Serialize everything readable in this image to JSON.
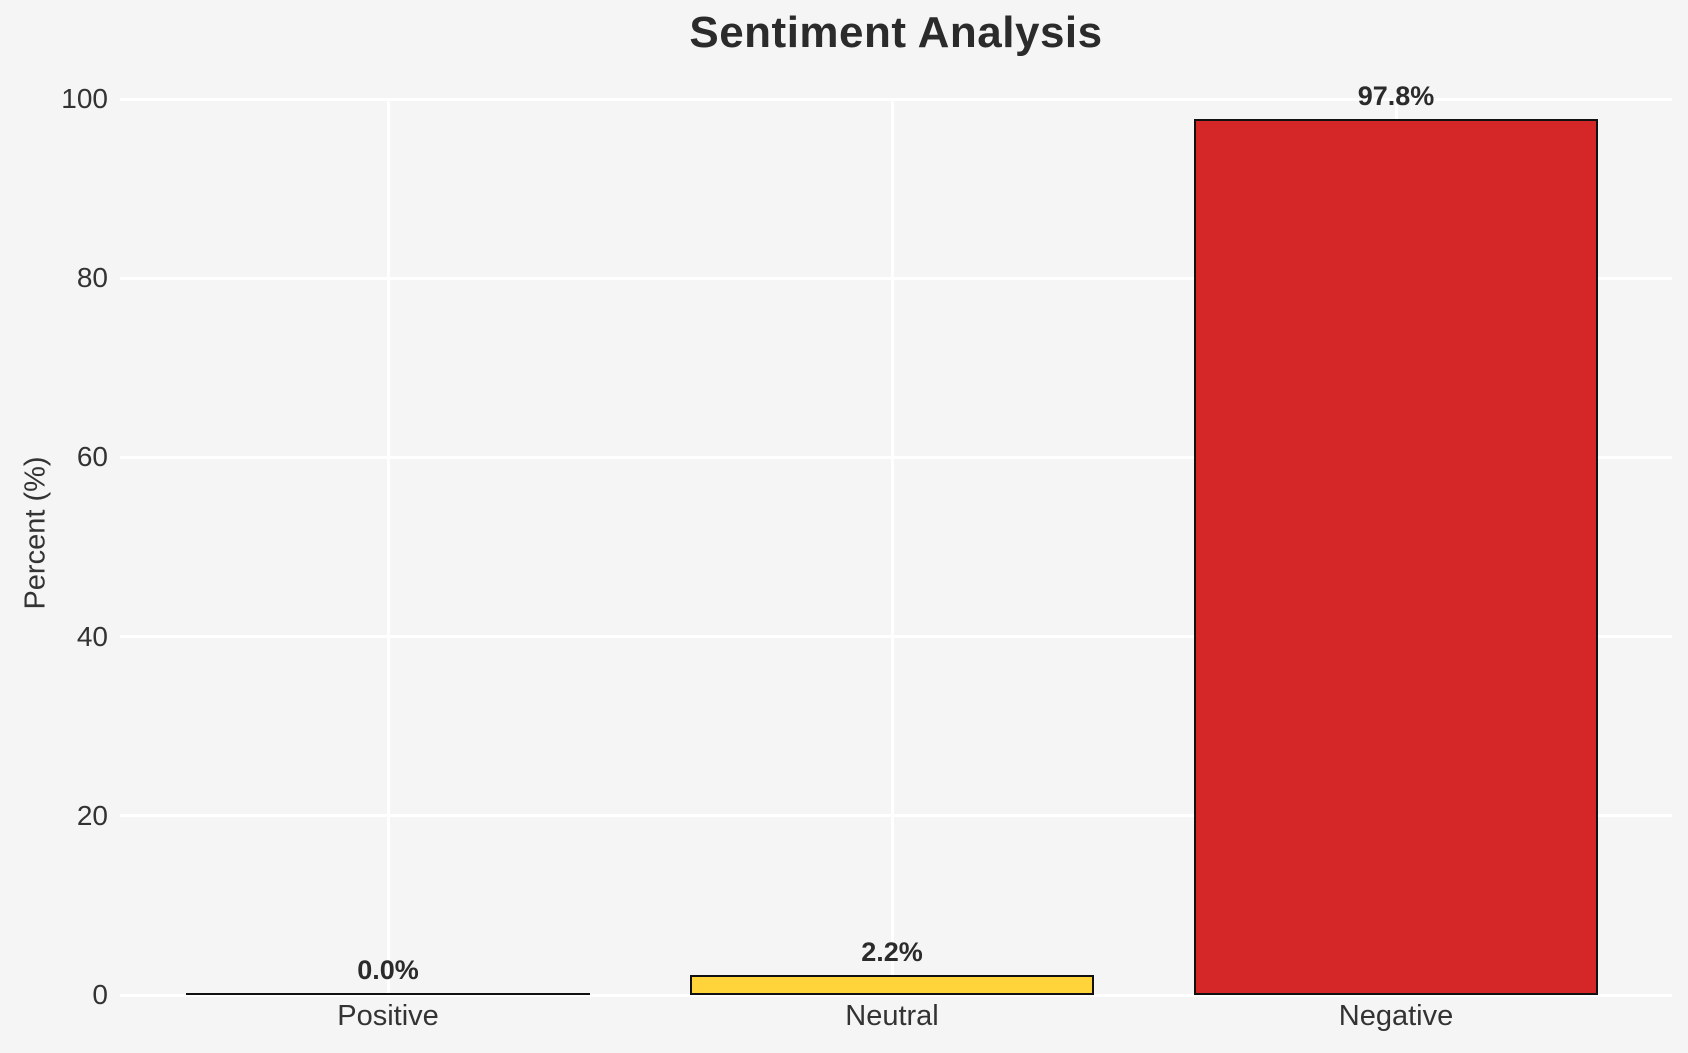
{
  "chart_data": {
    "type": "bar",
    "title": "Sentiment Analysis",
    "xlabel": "",
    "ylabel": "Percent (%)",
    "categories": [
      "Positive",
      "Neutral",
      "Negative"
    ],
    "values": [
      0.0,
      2.2,
      97.8
    ],
    "value_labels": [
      "0.0%",
      "2.2%",
      "97.8%"
    ],
    "bar_colors": [
      "#f5f5f6",
      "#FFD43B",
      "#D62728"
    ],
    "bar_edge_color": "#111111",
    "ylim": [
      0,
      100
    ],
    "yticks": [
      0,
      20,
      40,
      60,
      80,
      100
    ],
    "grid": "on",
    "grid_color": "#ffffff",
    "background_color": "#f5f5f6",
    "legend": "none"
  }
}
